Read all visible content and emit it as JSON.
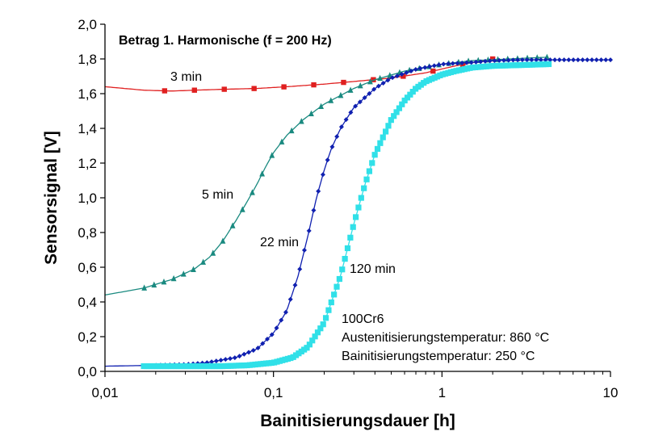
{
  "chart_data": {
    "type": "line",
    "title": "Betrag 1. Harmonische (f = 200 Hz)",
    "xlabel": "Bainitisierungsdauer [h]",
    "ylabel": "Sensorsignal [V]",
    "xscale": "log",
    "xlim": [
      0.01,
      10
    ],
    "ylim": [
      0,
      2
    ],
    "x_ticks": [
      "0,01",
      "0,1",
      "1",
      "10"
    ],
    "y_ticks": [
      "0,0",
      "0,2",
      "0,4",
      "0,6",
      "0,8",
      "1,0",
      "1,2",
      "1,4",
      "1,6",
      "1,8",
      "2,0"
    ],
    "grid": false,
    "annotations": {
      "material": "100Cr6",
      "austenit": "Austenitisierungstemperatur: 860 °C",
      "bainit": "Bainitisierungstemperatur: 250 °C"
    },
    "series": [
      {
        "name": "3 min",
        "color": "#e02020",
        "marker": "square",
        "x": [
          0.01,
          0.017,
          0.025,
          0.034,
          0.05,
          0.08,
          0.12,
          0.2,
          0.3,
          0.5,
          0.8,
          1.2,
          2.0
        ],
        "y": [
          1.64,
          1.62,
          1.615,
          1.62,
          1.625,
          1.63,
          1.64,
          1.655,
          1.67,
          1.69,
          1.72,
          1.76,
          1.8
        ]
      },
      {
        "name": "5 min",
        "color": "#1a8a80",
        "marker": "triangle",
        "x": [
          0.01,
          0.017,
          0.025,
          0.034,
          0.042,
          0.05,
          0.06,
          0.07,
          0.08,
          0.09,
          0.1,
          0.12,
          0.15,
          0.2,
          0.3,
          0.4,
          0.6,
          1.0,
          1.5,
          2.5,
          4.2
        ],
        "y": [
          0.44,
          0.48,
          0.53,
          0.59,
          0.66,
          0.75,
          0.87,
          0.98,
          1.08,
          1.18,
          1.26,
          1.36,
          1.45,
          1.54,
          1.63,
          1.68,
          1.73,
          1.77,
          1.79,
          1.8,
          1.81
        ]
      },
      {
        "name": "22 min",
        "color": "#1020b0",
        "marker": "diamond",
        "x": [
          0.01,
          0.02,
          0.03,
          0.04,
          0.06,
          0.08,
          0.1,
          0.12,
          0.14,
          0.16,
          0.18,
          0.2,
          0.22,
          0.25,
          0.3,
          0.4,
          0.5,
          0.7,
          1.0,
          1.5,
          2.0,
          3.0,
          5.0,
          10.0
        ],
        "y": [
          0.03,
          0.035,
          0.04,
          0.05,
          0.08,
          0.13,
          0.22,
          0.35,
          0.55,
          0.78,
          1.0,
          1.16,
          1.28,
          1.4,
          1.52,
          1.63,
          1.69,
          1.74,
          1.77,
          1.78,
          1.79,
          1.795,
          1.795,
          1.795
        ]
      },
      {
        "name": "120 min",
        "color": "#30e0e8",
        "marker": "square",
        "x": [
          0.017,
          0.03,
          0.05,
          0.07,
          0.1,
          0.13,
          0.16,
          0.2,
          0.25,
          0.3,
          0.35,
          0.4,
          0.5,
          0.6,
          0.7,
          0.8,
          1.0,
          1.2,
          1.5,
          2.0,
          3.0,
          4.3
        ],
        "y": [
          0.03,
          0.03,
          0.03,
          0.035,
          0.05,
          0.08,
          0.14,
          0.28,
          0.55,
          0.85,
          1.08,
          1.25,
          1.45,
          1.56,
          1.63,
          1.67,
          1.71,
          1.73,
          1.75,
          1.76,
          1.765,
          1.77
        ]
      }
    ]
  }
}
